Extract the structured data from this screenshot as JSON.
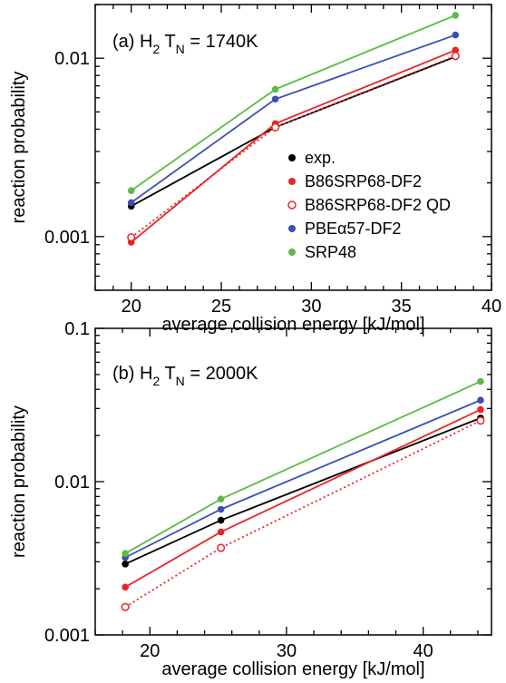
{
  "chart_data": [
    {
      "type": "line",
      "panel_label": "(a) H",
      "panel_sub1": "2",
      "panel_mid": " T",
      "panel_sub2": "N",
      "panel_tail": " = 1740K",
      "xlabel": "average collision energy [kJ/mol]",
      "ylabel": "reaction probability",
      "xlim": [
        18,
        40
      ],
      "ylim": [
        0.0005,
        0.02
      ],
      "yscale": "log",
      "x_ticks": [
        20,
        25,
        30,
        35,
        40
      ],
      "x_tick_labels": [
        "20",
        "25",
        "30",
        "35",
        "40"
      ],
      "y_ticks": [
        0.001,
        0.01
      ],
      "y_tick_labels": [
        "0.001",
        "0.01"
      ],
      "legend_position": "center-right",
      "series": [
        {
          "name": "exp.",
          "color": "#000000",
          "marker": "filled",
          "line": "solid",
          "x": [
            20,
            28,
            38
          ],
          "y": [
            0.00148,
            0.0041,
            0.0102
          ]
        },
        {
          "name": "B86SRP68-DF2",
          "color": "#e8252a",
          "marker": "filled",
          "line": "solid",
          "x": [
            20,
            28,
            38
          ],
          "y": [
            0.00093,
            0.0043,
            0.0111
          ]
        },
        {
          "name": "B86SRP68-DF2 QD",
          "color": "#e8252a",
          "marker": "open",
          "line": "dotted",
          "x": [
            20,
            28,
            38
          ],
          "y": [
            0.00099,
            0.0041,
            0.0103
          ]
        },
        {
          "name": "PBEα57-DF2",
          "color": "#3a4fb4",
          "marker": "filled",
          "line": "solid",
          "x": [
            20,
            28,
            38
          ],
          "y": [
            0.00155,
            0.0059,
            0.0135
          ]
        },
        {
          "name": "SRP48",
          "color": "#5dbb46",
          "marker": "filled",
          "line": "solid",
          "x": [
            20,
            28,
            38
          ],
          "y": [
            0.00181,
            0.0067,
            0.0174
          ]
        }
      ]
    },
    {
      "type": "line",
      "panel_label": "(b) H",
      "panel_sub1": "2",
      "panel_mid": " T",
      "panel_sub2": "N",
      "panel_tail": " = 2000K",
      "xlabel": "average collision energy  [kJ/mol]",
      "ylabel": "reaction probability",
      "xlim": [
        16,
        45
      ],
      "ylim": [
        0.001,
        0.1
      ],
      "yscale": "log",
      "x_ticks": [
        20,
        30,
        40
      ],
      "x_tick_labels": [
        "20",
        "30",
        "40"
      ],
      "y_ticks": [
        0.001,
        0.01,
        0.1
      ],
      "y_tick_labels": [
        "0.001",
        "0.01",
        "0.1"
      ],
      "series": [
        {
          "name": "exp.",
          "color": "#000000",
          "marker": "filled",
          "line": "solid",
          "x": [
            18.2,
            25.2,
            44.2
          ],
          "y": [
            0.0029,
            0.0056,
            0.026
          ]
        },
        {
          "name": "B86SRP68-DF2",
          "color": "#e8252a",
          "marker": "filled",
          "line": "solid",
          "x": [
            18.2,
            25.2,
            44.2
          ],
          "y": [
            0.00205,
            0.0047,
            0.0295
          ]
        },
        {
          "name": "B86SRP68-DF2 QD",
          "color": "#e8252a",
          "marker": "open",
          "line": "dotted",
          "x": [
            18.2,
            25.2,
            44.2
          ],
          "y": [
            0.00152,
            0.0037,
            0.025
          ]
        },
        {
          "name": "PBEα57-DF2",
          "color": "#3a4fb4",
          "marker": "filled",
          "line": "solid",
          "x": [
            18.2,
            25.2,
            44.2
          ],
          "y": [
            0.0032,
            0.0066,
            0.034
          ]
        },
        {
          "name": "SRP48",
          "color": "#5dbb46",
          "marker": "filled",
          "line": "solid",
          "x": [
            18.2,
            25.2,
            44.2
          ],
          "y": [
            0.0034,
            0.0077,
            0.045
          ]
        }
      ]
    }
  ]
}
